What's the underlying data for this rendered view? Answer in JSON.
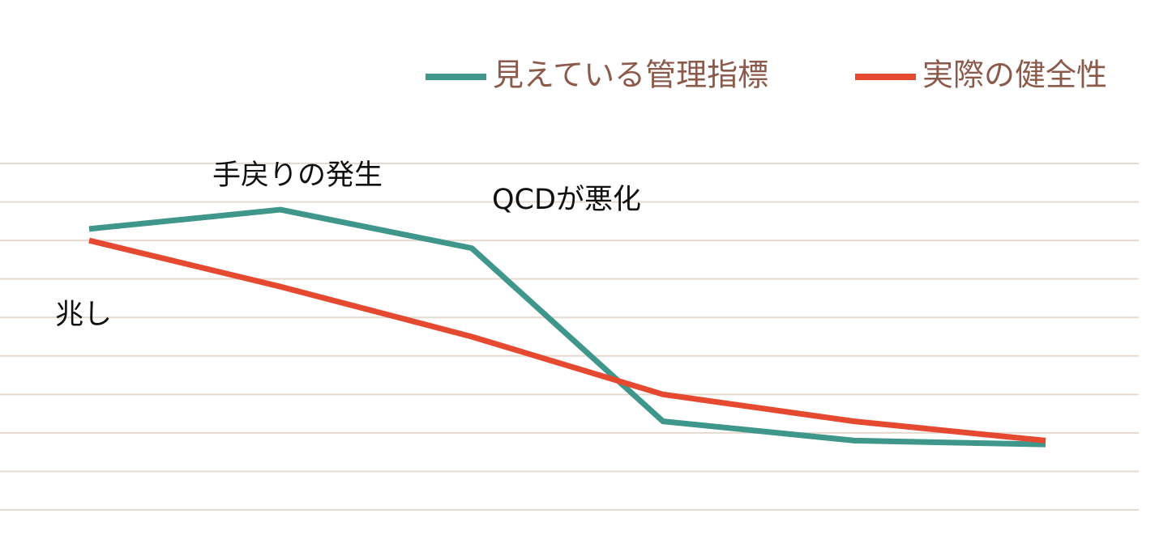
{
  "chart_data": {
    "type": "line",
    "categories": [
      null,
      null,
      null,
      null,
      null,
      null
    ],
    "series": [
      {
        "name": "見えている管理指標",
        "color": "#3f968a",
        "values": [
          7.3,
          7.8,
          6.8,
          2.3,
          1.8,
          1.7
        ]
      },
      {
        "name": "実際の健全性",
        "color": "#e5492f",
        "values": [
          7.0,
          5.8,
          4.5,
          3.0,
          2.3,
          1.8
        ]
      }
    ],
    "ylim": [
      0,
      9
    ],
    "yticks": [
      0,
      1,
      2,
      3,
      4,
      5,
      6,
      7,
      8,
      9
    ],
    "grid": true,
    "legend": "top-right",
    "annotations": [
      {
        "text": "兆し",
        "index": 0
      },
      {
        "text": "手戻りの発生",
        "index": 1
      },
      {
        "text": "QCDが悪化",
        "index": 2
      }
    ]
  }
}
